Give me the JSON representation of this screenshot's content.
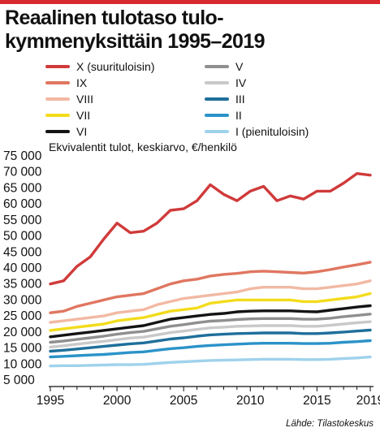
{
  "title_line1": "Reaalinen tulotaso tulo-",
  "title_line2": "kymmenyksittäin 1995–2019",
  "accent_color": "#d7292f",
  "chart_data": {
    "type": "line",
    "subtitle": "Ekvivalentit tulot, keskiarvo, €/henkilö",
    "source": "Lähde: Tilastokeskus",
    "x": [
      1995,
      1996,
      1997,
      1998,
      1999,
      2000,
      2001,
      2002,
      2003,
      2004,
      2005,
      2006,
      2007,
      2008,
      2009,
      2010,
      2011,
      2012,
      2013,
      2014,
      2015,
      2016,
      2017,
      2018,
      2019
    ],
    "xticks": [
      1995,
      2000,
      2005,
      2010,
      2015,
      2019
    ],
    "xtick_labels": [
      "1995",
      "2000",
      "2005",
      "2010",
      "2015",
      "2019"
    ],
    "ylim": [
      5000,
      75000
    ],
    "yticks": [
      5000,
      10000,
      15000,
      20000,
      25000,
      30000,
      35000,
      40000,
      45000,
      50000,
      55000,
      60000,
      65000,
      70000,
      75000
    ],
    "ytick_labels": [
      "5 000",
      "10 000",
      "15 000",
      "20 000",
      "25 000",
      "30 000",
      "35 000",
      "40 000",
      "45 000",
      "50 000",
      "55 000",
      "60 000",
      "65 000",
      "70 000",
      "75 000"
    ],
    "grid": false,
    "series": [
      {
        "name": "X (suurituloisin)",
        "color": "#d03a3a",
        "values": [
          35000,
          36000,
          40500,
          43500,
          49000,
          54000,
          51000,
          51500,
          54000,
          58000,
          58500,
          61000,
          66000,
          63000,
          61000,
          64000,
          65500,
          61000,
          62500,
          61500,
          64000,
          64000,
          66500,
          69500,
          69000
        ]
      },
      {
        "name": "IX",
        "color": "#e07660",
        "values": [
          26000,
          26500,
          28000,
          29000,
          30000,
          31000,
          31500,
          32000,
          33500,
          35000,
          36000,
          36500,
          37500,
          38000,
          38300,
          38800,
          39000,
          38800,
          38600,
          38400,
          38800,
          39500,
          40300,
          41000,
          41800
        ]
      },
      {
        "name": "VIII",
        "color": "#f2b9a3",
        "values": [
          23000,
          23500,
          24000,
          24500,
          25000,
          26000,
          26500,
          27000,
          28500,
          29500,
          30500,
          31000,
          31500,
          32000,
          32500,
          33500,
          34000,
          34000,
          34000,
          33500,
          33500,
          34000,
          34500,
          35000,
          36000
        ]
      },
      {
        "name": "VII",
        "color": "#f2dc1c",
        "values": [
          20500,
          21000,
          21500,
          22000,
          22500,
          23500,
          24000,
          24500,
          25500,
          26500,
          27000,
          27500,
          29000,
          29500,
          30000,
          30000,
          30000,
          30000,
          30000,
          29500,
          29500,
          30000,
          30500,
          31000,
          32000
        ]
      },
      {
        "name": "VI",
        "color": "#141414",
        "values": [
          18500,
          19000,
          19500,
          20000,
          20500,
          21000,
          21500,
          22000,
          23000,
          24000,
          24500,
          25000,
          25500,
          25800,
          26300,
          26500,
          26600,
          26600,
          26600,
          26400,
          26300,
          26800,
          27300,
          27800,
          28200
        ]
      },
      {
        "name": "V",
        "color": "#8f8f8f",
        "values": [
          16800,
          17200,
          17700,
          18200,
          18700,
          19300,
          19800,
          20200,
          21000,
          21800,
          22300,
          22900,
          23400,
          23600,
          23900,
          24100,
          24200,
          24200,
          24200,
          24000,
          24000,
          24300,
          24800,
          25200,
          25600
        ]
      },
      {
        "name": "IV",
        "color": "#c9c9c9",
        "values": [
          15300,
          15700,
          16200,
          16700,
          17100,
          17600,
          18100,
          18400,
          19100,
          19800,
          20300,
          20800,
          21300,
          21500,
          21800,
          21900,
          22000,
          22000,
          22000,
          21800,
          21800,
          22100,
          22500,
          22900,
          23200
        ]
      },
      {
        "name": "III",
        "color": "#1f6f9b",
        "values": [
          14000,
          14300,
          14700,
          15100,
          15500,
          15900,
          16300,
          16600,
          17200,
          17800,
          18200,
          18700,
          19100,
          19300,
          19500,
          19600,
          19700,
          19700,
          19700,
          19500,
          19500,
          19700,
          20000,
          20300,
          20600
        ]
      },
      {
        "name": "II",
        "color": "#2b93c9",
        "values": [
          12200,
          12400,
          12600,
          12800,
          13000,
          13300,
          13600,
          13800,
          14300,
          14800,
          15100,
          15500,
          15800,
          16000,
          16200,
          16400,
          16500,
          16500,
          16500,
          16400,
          16400,
          16500,
          16800,
          17000,
          17300
        ]
      },
      {
        "name": "I (pienituloisin)",
        "color": "#9fd2ec",
        "values": [
          9400,
          9500,
          9500,
          9600,
          9700,
          9800,
          9800,
          9900,
          10200,
          10500,
          10700,
          10900,
          11100,
          11200,
          11300,
          11400,
          11500,
          11500,
          11500,
          11400,
          11400,
          11500,
          11700,
          11900,
          12200
        ]
      }
    ]
  }
}
